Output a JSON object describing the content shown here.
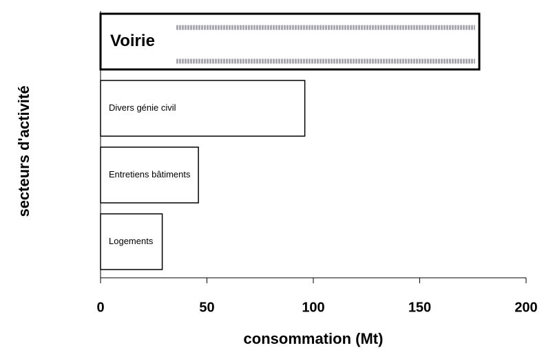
{
  "chart_data": {
    "type": "barh",
    "xlabel": "consommation (Mt)",
    "ylabel": "secteurs d'activité",
    "categories": [
      "Voirie",
      "Divers génie civil",
      "Entretiens bâtiments",
      "Logements"
    ],
    "values": [
      178,
      96,
      46,
      29
    ],
    "color": "#ffffff",
    "xlim": [
      0,
      200
    ],
    "xticks": [
      0,
      50,
      100,
      150,
      200
    ]
  }
}
